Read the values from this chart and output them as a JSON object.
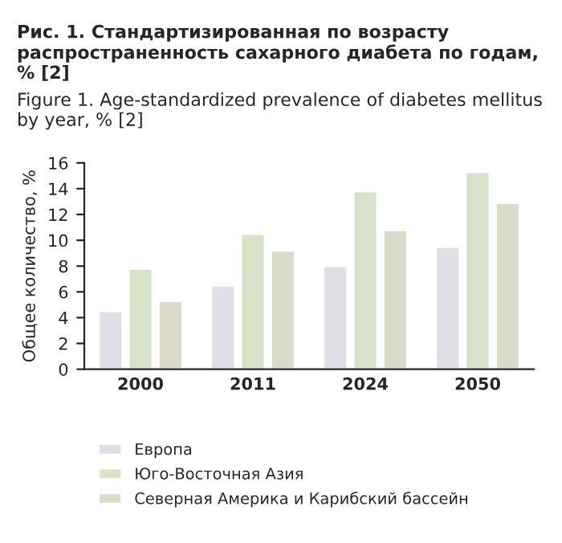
{
  "chart_data": {
    "type": "bar",
    "title": "Рис. 1. Стандартизированная по возрасту распространенность сахарного диабета по годам, % [2]",
    "subtitle": "Figure 1. Age-standardized prevalence of diabetes mellitus by year, % [2]",
    "ylabel": "Общее количество, %",
    "categories": [
      "2000",
      "2011",
      "2024",
      "2050"
    ],
    "series": [
      {
        "name": "Европа",
        "color": "#e2dcea",
        "values": [
          4.5,
          6.5,
          8.0,
          9.5
        ]
      },
      {
        "name": "Юго-Восточная Азия",
        "color": "#d9e6c5",
        "values": [
          7.8,
          10.5,
          13.8,
          15.3
        ]
      },
      {
        "name": "Северная Америка и Карибский бассейн",
        "color": "#deddc9",
        "values": [
          5.3,
          9.2,
          10.8,
          12.9
        ]
      }
    ],
    "ylim": [
      0,
      16
    ],
    "yticks": [
      0,
      2,
      4,
      6,
      8,
      10,
      12,
      14,
      16
    ],
    "grid": false,
    "legend": "bottom"
  }
}
